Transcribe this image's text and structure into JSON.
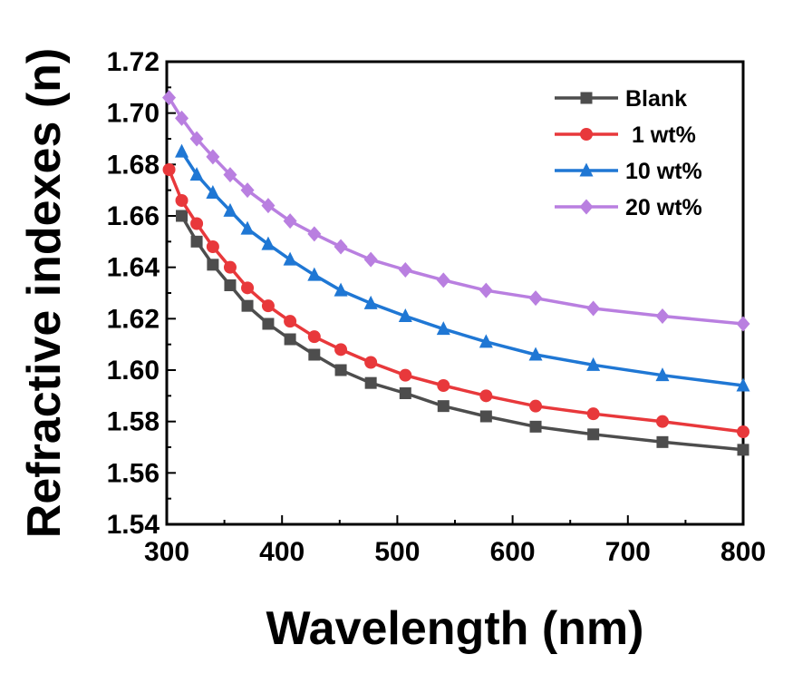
{
  "chart_data": {
    "type": "line",
    "xlabel": "Wavelength (nm)",
    "ylabel": "Refractive indexes (n)",
    "xlim": [
      300,
      800
    ],
    "ylim": [
      1.54,
      1.72
    ],
    "xticks": [
      "300",
      "400",
      "500",
      "600",
      "700",
      "800"
    ],
    "yticks": [
      "1.54",
      "1.56",
      "1.58",
      "1.60",
      "1.62",
      "1.64",
      "1.66",
      "1.68",
      "1.70",
      "1.72"
    ],
    "grid": false,
    "legend_position": "top-right",
    "series": [
      {
        "name": "Blank",
        "color": "#4d4d4d",
        "marker": "square",
        "x": [
          313,
          326,
          340,
          355,
          370,
          388,
          407,
          428,
          451,
          477,
          507,
          540,
          577,
          620,
          670,
          730,
          800
        ],
        "y": [
          1.66,
          1.65,
          1.641,
          1.633,
          1.625,
          1.618,
          1.612,
          1.606,
          1.6,
          1.595,
          1.591,
          1.586,
          1.582,
          1.578,
          1.575,
          1.572,
          1.569
        ]
      },
      {
        "name": "1 wt%",
        "color": "#e8383b",
        "marker": "circle",
        "x": [
          302,
          313,
          326,
          340,
          355,
          370,
          388,
          407,
          428,
          451,
          477,
          507,
          540,
          577,
          620,
          670,
          730,
          800
        ],
        "y": [
          1.678,
          1.666,
          1.657,
          1.648,
          1.64,
          1.632,
          1.625,
          1.619,
          1.613,
          1.608,
          1.603,
          1.598,
          1.594,
          1.59,
          1.586,
          1.583,
          1.58,
          1.576
        ]
      },
      {
        "name": "10 wt%",
        "color": "#1f77d4",
        "marker": "triangle",
        "x": [
          313,
          326,
          340,
          355,
          370,
          388,
          407,
          428,
          451,
          477,
          507,
          540,
          577,
          620,
          670,
          730,
          800
        ],
        "y": [
          1.685,
          1.676,
          1.669,
          1.662,
          1.655,
          1.649,
          1.643,
          1.637,
          1.631,
          1.626,
          1.621,
          1.616,
          1.611,
          1.606,
          1.602,
          1.598,
          1.594
        ]
      },
      {
        "name": "20 wt%",
        "color": "#b97fe0",
        "marker": "diamond",
        "x": [
          302,
          313,
          326,
          340,
          355,
          370,
          388,
          407,
          428,
          451,
          477,
          507,
          540,
          577,
          620,
          670,
          730,
          800
        ],
        "y": [
          1.706,
          1.698,
          1.69,
          1.683,
          1.676,
          1.67,
          1.664,
          1.658,
          1.653,
          1.648,
          1.643,
          1.639,
          1.635,
          1.631,
          1.628,
          1.624,
          1.621,
          1.618
        ]
      }
    ],
    "legend_labels": [
      "Blank",
      " 1 wt%",
      "10 wt%",
      "20 wt%"
    ]
  }
}
